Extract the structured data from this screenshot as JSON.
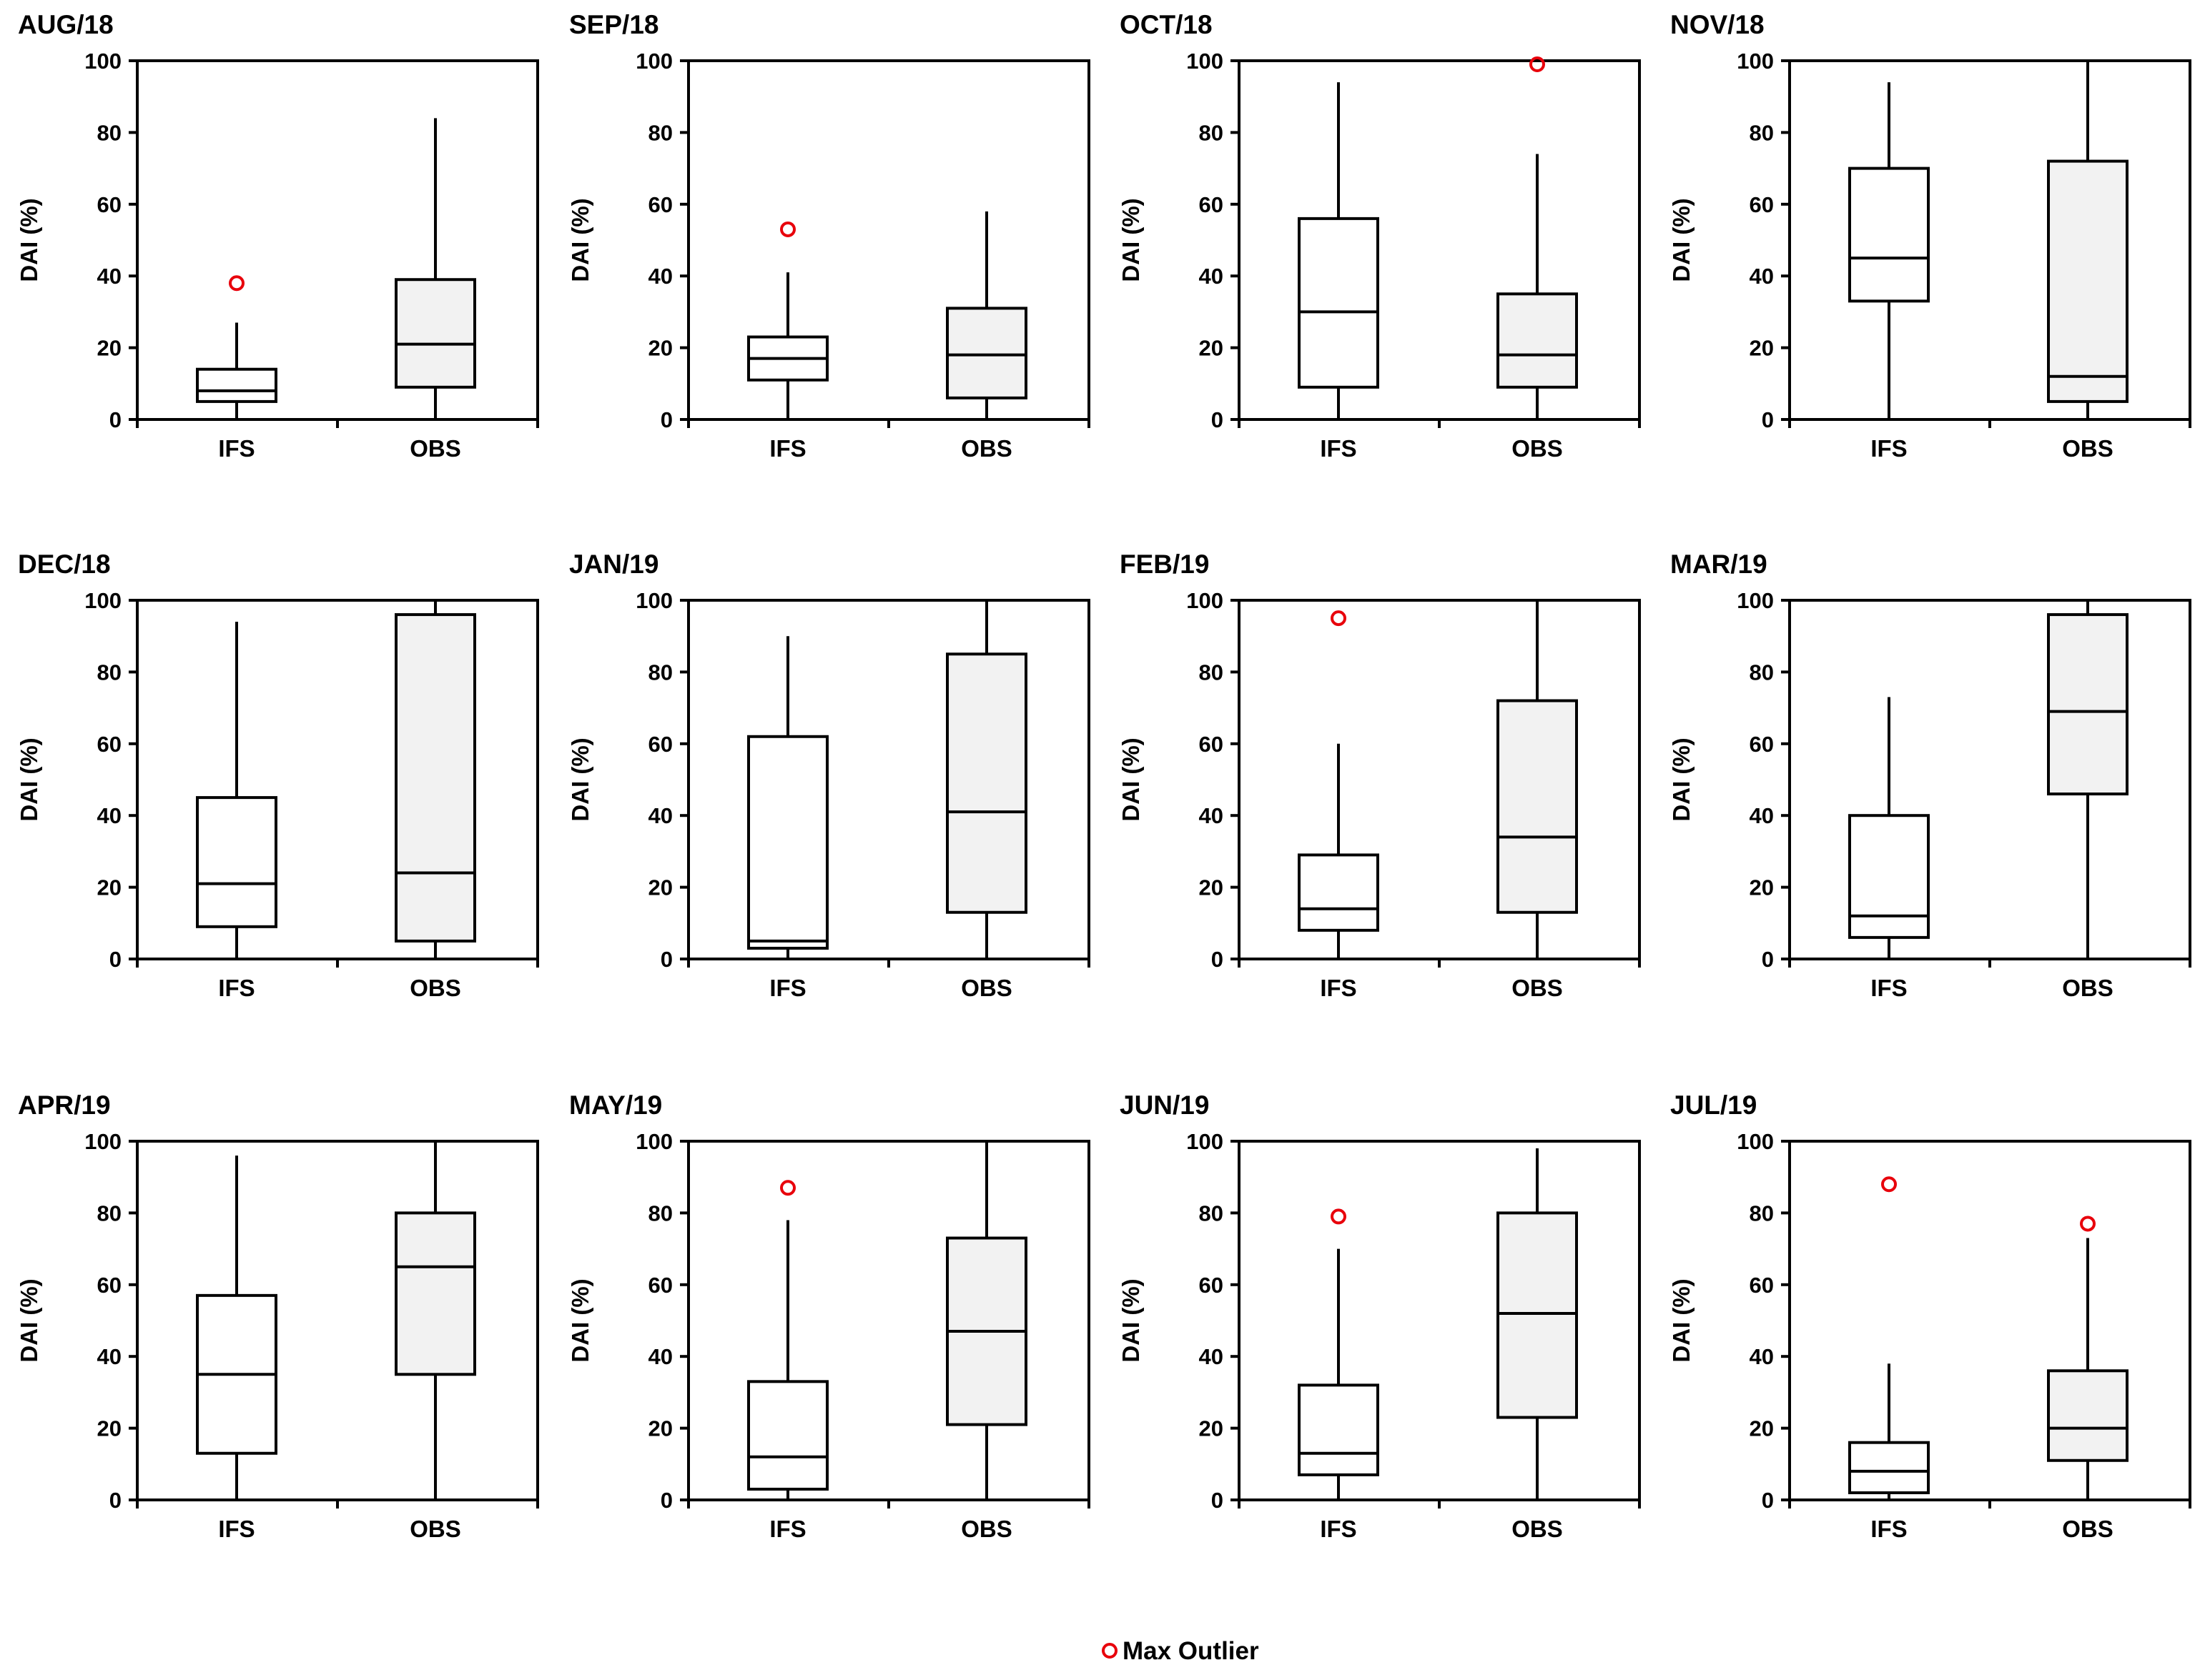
{
  "chart_data": {
    "type": "boxplot",
    "ylabel": "DAI (%)",
    "ylim": [
      0,
      100
    ],
    "yticks": [
      0,
      20,
      40,
      60,
      80,
      100
    ],
    "categories": [
      "IFS",
      "OBS"
    ],
    "legend": {
      "label": "Max Outlier",
      "position": "bottom-center",
      "marker_color": "#e8000b"
    },
    "colors": {
      "IFS_fill": "#ffffff",
      "OBS_fill": "#f2f2f2",
      "outlier": "#e8000b"
    },
    "panels": [
      {
        "title": "AUG/18",
        "boxes": [
          {
            "category": "IFS",
            "min": 0,
            "q1": 5,
            "median": 8,
            "q3": 14,
            "max": 27,
            "max_outlier": 38
          },
          {
            "category": "OBS",
            "min": 0,
            "q1": 9,
            "median": 21,
            "q3": 39,
            "max": 84,
            "max_outlier": null
          }
        ]
      },
      {
        "title": "SEP/18",
        "boxes": [
          {
            "category": "IFS",
            "min": 0,
            "q1": 11,
            "median": 17,
            "q3": 23,
            "max": 41,
            "max_outlier": 53
          },
          {
            "category": "OBS",
            "min": 0,
            "q1": 6,
            "median": 18,
            "q3": 31,
            "max": 58,
            "max_outlier": null
          }
        ]
      },
      {
        "title": "OCT/18",
        "boxes": [
          {
            "category": "IFS",
            "min": 0,
            "q1": 9,
            "median": 30,
            "q3": 56,
            "max": 94,
            "max_outlier": null
          },
          {
            "category": "OBS",
            "min": 0,
            "q1": 9,
            "median": 18,
            "q3": 35,
            "max": 74,
            "max_outlier": 99
          }
        ]
      },
      {
        "title": "NOV/18",
        "boxes": [
          {
            "category": "IFS",
            "min": 0,
            "q1": 33,
            "median": 45,
            "q3": 70,
            "max": 94,
            "max_outlier": null
          },
          {
            "category": "OBS",
            "min": 0,
            "q1": 5,
            "median": 12,
            "q3": 72,
            "max": 100,
            "max_outlier": null
          }
        ]
      },
      {
        "title": "DEC/18",
        "boxes": [
          {
            "category": "IFS",
            "min": 0,
            "q1": 9,
            "median": 21,
            "q3": 45,
            "max": 94,
            "max_outlier": null
          },
          {
            "category": "OBS",
            "min": 0,
            "q1": 5,
            "median": 24,
            "q3": 96,
            "max": 100,
            "max_outlier": null
          }
        ]
      },
      {
        "title": "JAN/19",
        "boxes": [
          {
            "category": "IFS",
            "min": 0,
            "q1": 3,
            "median": 5,
            "q3": 62,
            "max": 90,
            "max_outlier": null
          },
          {
            "category": "OBS",
            "min": 0,
            "q1": 13,
            "median": 41,
            "q3": 85,
            "max": 100,
            "max_outlier": null
          }
        ]
      },
      {
        "title": "FEB/19",
        "boxes": [
          {
            "category": "IFS",
            "min": 0,
            "q1": 8,
            "median": 14,
            "q3": 29,
            "max": 60,
            "max_outlier": 95
          },
          {
            "category": "OBS",
            "min": 0,
            "q1": 13,
            "median": 34,
            "q3": 72,
            "max": 100,
            "max_outlier": null
          }
        ]
      },
      {
        "title": "MAR/19",
        "boxes": [
          {
            "category": "IFS",
            "min": 0,
            "q1": 6,
            "median": 12,
            "q3": 40,
            "max": 73,
            "max_outlier": null
          },
          {
            "category": "OBS",
            "min": 0,
            "q1": 46,
            "median": 69,
            "q3": 96,
            "max": 100,
            "max_outlier": null
          }
        ]
      },
      {
        "title": "APR/19",
        "boxes": [
          {
            "category": "IFS",
            "min": 0,
            "q1": 13,
            "median": 35,
            "q3": 57,
            "max": 96,
            "max_outlier": null
          },
          {
            "category": "OBS",
            "min": 0,
            "q1": 35,
            "median": 65,
            "q3": 80,
            "max": 100,
            "max_outlier": null
          }
        ]
      },
      {
        "title": "MAY/19",
        "boxes": [
          {
            "category": "IFS",
            "min": 0,
            "q1": 3,
            "median": 12,
            "q3": 33,
            "max": 78,
            "max_outlier": 87
          },
          {
            "category": "OBS",
            "min": 0,
            "q1": 21,
            "median": 47,
            "q3": 73,
            "max": 100,
            "max_outlier": null
          }
        ]
      },
      {
        "title": "JUN/19",
        "boxes": [
          {
            "category": "IFS",
            "min": 0,
            "q1": 7,
            "median": 13,
            "q3": 32,
            "max": 70,
            "max_outlier": 79
          },
          {
            "category": "OBS",
            "min": 0,
            "q1": 23,
            "median": 52,
            "q3": 80,
            "max": 98,
            "max_outlier": null
          }
        ]
      },
      {
        "title": "JUL/19",
        "boxes": [
          {
            "category": "IFS",
            "min": 0,
            "q1": 2,
            "median": 8,
            "q3": 16,
            "max": 38,
            "max_outlier": 88
          },
          {
            "category": "OBS",
            "min": 0,
            "q1": 11,
            "median": 20,
            "q3": 36,
            "max": 73,
            "max_outlier": 77
          }
        ]
      }
    ]
  }
}
